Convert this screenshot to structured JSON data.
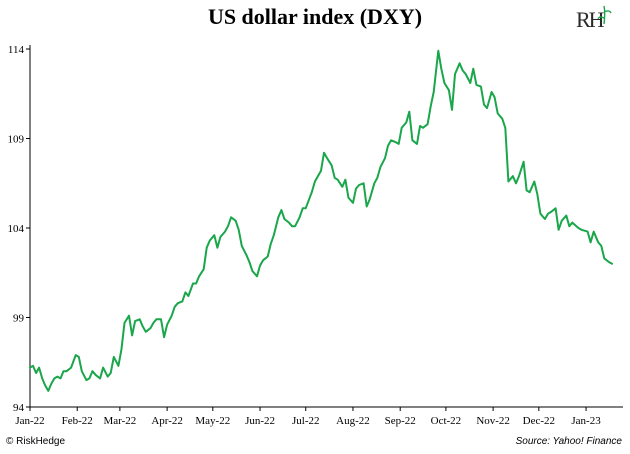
{
  "chart_data": {
    "type": "line",
    "title": "US dollar index (DXY)",
    "xlabel": "",
    "ylabel": "",
    "ylim": [
      94,
      114
    ],
    "yticks": [
      94,
      99,
      104,
      109,
      114
    ],
    "xlim": [
      "2022-01-01",
      "2023-01-20"
    ],
    "xticks": [
      {
        "label": "Jan-22",
        "date": "2022-01-01"
      },
      {
        "label": "Feb-22",
        "date": "2022-02-01"
      },
      {
        "label": "Mar-22",
        "date": "2022-03-01"
      },
      {
        "label": "Apr-22",
        "date": "2022-04-01"
      },
      {
        "label": "May-22",
        "date": "2022-05-01"
      },
      {
        "label": "Jun-22",
        "date": "2022-06-01"
      },
      {
        "label": "Jul-22",
        "date": "2022-07-01"
      },
      {
        "label": "Aug-22",
        "date": "2022-08-01"
      },
      {
        "label": "Sep-22",
        "date": "2022-09-01"
      },
      {
        "label": "Oct-22",
        "date": "2022-10-01"
      },
      {
        "label": "Nov-22",
        "date": "2022-11-01"
      },
      {
        "label": "Dec-22",
        "date": "2022-12-01"
      },
      {
        "label": "Jan-23",
        "date": "2023-01-01"
      }
    ],
    "line_color": "#1aa64a",
    "grid": false,
    "series": [
      {
        "x": [
          "2022-01-01",
          "2022-01-03",
          "2022-01-05",
          "2022-01-07",
          "2022-01-09",
          "2022-01-11",
          "2022-01-13",
          "2022-01-15",
          "2022-01-17",
          "2022-01-19",
          "2022-01-21",
          "2022-01-23",
          "2022-01-25",
          "2022-01-28",
          "2022-01-31",
          "2022-02-02",
          "2022-02-04",
          "2022-02-07",
          "2022-02-09",
          "2022-02-11",
          "2022-02-13",
          "2022-02-16",
          "2022-02-18",
          "2022-02-21",
          "2022-02-23",
          "2022-02-25",
          "2022-02-28",
          "2022-03-02",
          "2022-03-04",
          "2022-03-07",
          "2022-03-09",
          "2022-03-11",
          "2022-03-14",
          "2022-03-16",
          "2022-03-18",
          "2022-03-21",
          "2022-03-23",
          "2022-03-25",
          "2022-03-28",
          "2022-03-30",
          "2022-04-01",
          "2022-04-04",
          "2022-04-06",
          "2022-04-08",
          "2022-04-11",
          "2022-04-13",
          "2022-04-15",
          "2022-04-18",
          "2022-04-20",
          "2022-04-22",
          "2022-04-25",
          "2022-04-27",
          "2022-04-29",
          "2022-05-02",
          "2022-05-04",
          "2022-05-06",
          "2022-05-09",
          "2022-05-11",
          "2022-05-13",
          "2022-05-16",
          "2022-05-18",
          "2022-05-20",
          "2022-05-23",
          "2022-05-25",
          "2022-05-27",
          "2022-05-30",
          "2022-06-01",
          "2022-06-03",
          "2022-06-06",
          "2022-06-08",
          "2022-06-10",
          "2022-06-13",
          "2022-06-15",
          "2022-06-17",
          "2022-06-20",
          "2022-06-22",
          "2022-06-24",
          "2022-06-27",
          "2022-06-29",
          "2022-07-01",
          "2022-07-05",
          "2022-07-07",
          "2022-07-11",
          "2022-07-13",
          "2022-07-15",
          "2022-07-18",
          "2022-07-20",
          "2022-07-22",
          "2022-07-25",
          "2022-07-27",
          "2022-07-29",
          "2022-08-01",
          "2022-08-03",
          "2022-08-05",
          "2022-08-08",
          "2022-08-10",
          "2022-08-12",
          "2022-08-15",
          "2022-08-17",
          "2022-08-19",
          "2022-08-22",
          "2022-08-24",
          "2022-08-26",
          "2022-08-29",
          "2022-08-31",
          "2022-09-02",
          "2022-09-05",
          "2022-09-07",
          "2022-09-09",
          "2022-09-12",
          "2022-09-14",
          "2022-09-16",
          "2022-09-19",
          "2022-09-21",
          "2022-09-23",
          "2022-09-26",
          "2022-09-28",
          "2022-09-30",
          "2022-10-03",
          "2022-10-05",
          "2022-10-07",
          "2022-10-10",
          "2022-10-12",
          "2022-10-14",
          "2022-10-17",
          "2022-10-19",
          "2022-10-21",
          "2022-10-24",
          "2022-10-26",
          "2022-10-28",
          "2022-10-31",
          "2022-11-02",
          "2022-11-04",
          "2022-11-07",
          "2022-11-09",
          "2022-11-11",
          "2022-11-14",
          "2022-11-16",
          "2022-11-18",
          "2022-11-21",
          "2022-11-23",
          "2022-11-25",
          "2022-11-28",
          "2022-11-30",
          "2022-12-02",
          "2022-12-05",
          "2022-12-07",
          "2022-12-09",
          "2022-12-12",
          "2022-12-14",
          "2022-12-16",
          "2022-12-19",
          "2022-12-21",
          "2022-12-23",
          "2022-12-27",
          "2022-12-29",
          "2023-01-02",
          "2023-01-04",
          "2023-01-06",
          "2023-01-09",
          "2023-01-11",
          "2023-01-13",
          "2023-01-16",
          "2023-01-18"
        ],
        "values": [
          96.2,
          96.3,
          95.9,
          96.2,
          95.6,
          95.2,
          94.9,
          95.3,
          95.6,
          95.7,
          95.6,
          96.0,
          96.0,
          96.2,
          96.9,
          96.8,
          96.0,
          95.5,
          95.6,
          96.0,
          95.8,
          95.6,
          96.2,
          95.7,
          95.9,
          96.8,
          96.3,
          97.2,
          98.7,
          99.1,
          98.0,
          98.8,
          98.9,
          98.5,
          98.2,
          98.4,
          98.7,
          98.9,
          98.9,
          97.9,
          98.6,
          99.1,
          99.6,
          99.8,
          99.9,
          100.4,
          100.2,
          100.9,
          100.9,
          101.3,
          101.7,
          102.9,
          103.3,
          103.6,
          102.9,
          103.5,
          103.8,
          104.1,
          104.6,
          104.4,
          103.9,
          103.0,
          102.5,
          102.1,
          101.6,
          101.3,
          101.9,
          102.2,
          102.4,
          103.1,
          103.6,
          104.6,
          105.0,
          104.5,
          104.3,
          104.1,
          104.1,
          104.6,
          105.1,
          105.1,
          106.0,
          106.6,
          107.2,
          108.2,
          107.9,
          107.5,
          106.8,
          106.7,
          106.3,
          106.7,
          105.7,
          105.4,
          106.2,
          106.4,
          106.5,
          105.2,
          105.6,
          106.5,
          106.8,
          107.4,
          107.9,
          108.6,
          108.9,
          108.8,
          108.7,
          109.6,
          109.9,
          110.5,
          108.9,
          108.7,
          109.7,
          109.6,
          109.8,
          110.8,
          111.6,
          113.9,
          112.9,
          112.1,
          111.7,
          110.6,
          112.6,
          113.2,
          112.8,
          112.6,
          112.1,
          112.9,
          112.0,
          111.9,
          110.9,
          110.7,
          111.6,
          111.3,
          110.4,
          110.1,
          109.6,
          106.6,
          106.9,
          106.5,
          106.9,
          107.7,
          106.1,
          106.0,
          106.6,
          105.9,
          104.8,
          104.5,
          104.8,
          104.9,
          105.1,
          103.9,
          104.4,
          104.7,
          104.1,
          104.3,
          104.0,
          103.9,
          103.8,
          103.2,
          103.8,
          103.2,
          103.0,
          102.3,
          102.1,
          102.0
        ]
      }
    ]
  },
  "footer": {
    "left": "© RiskHedge",
    "right": "Source: Yahoo! Finance"
  },
  "logo": {
    "text": "RH",
    "color": "#2a2a2a",
    "accent": "#1aa64a"
  }
}
